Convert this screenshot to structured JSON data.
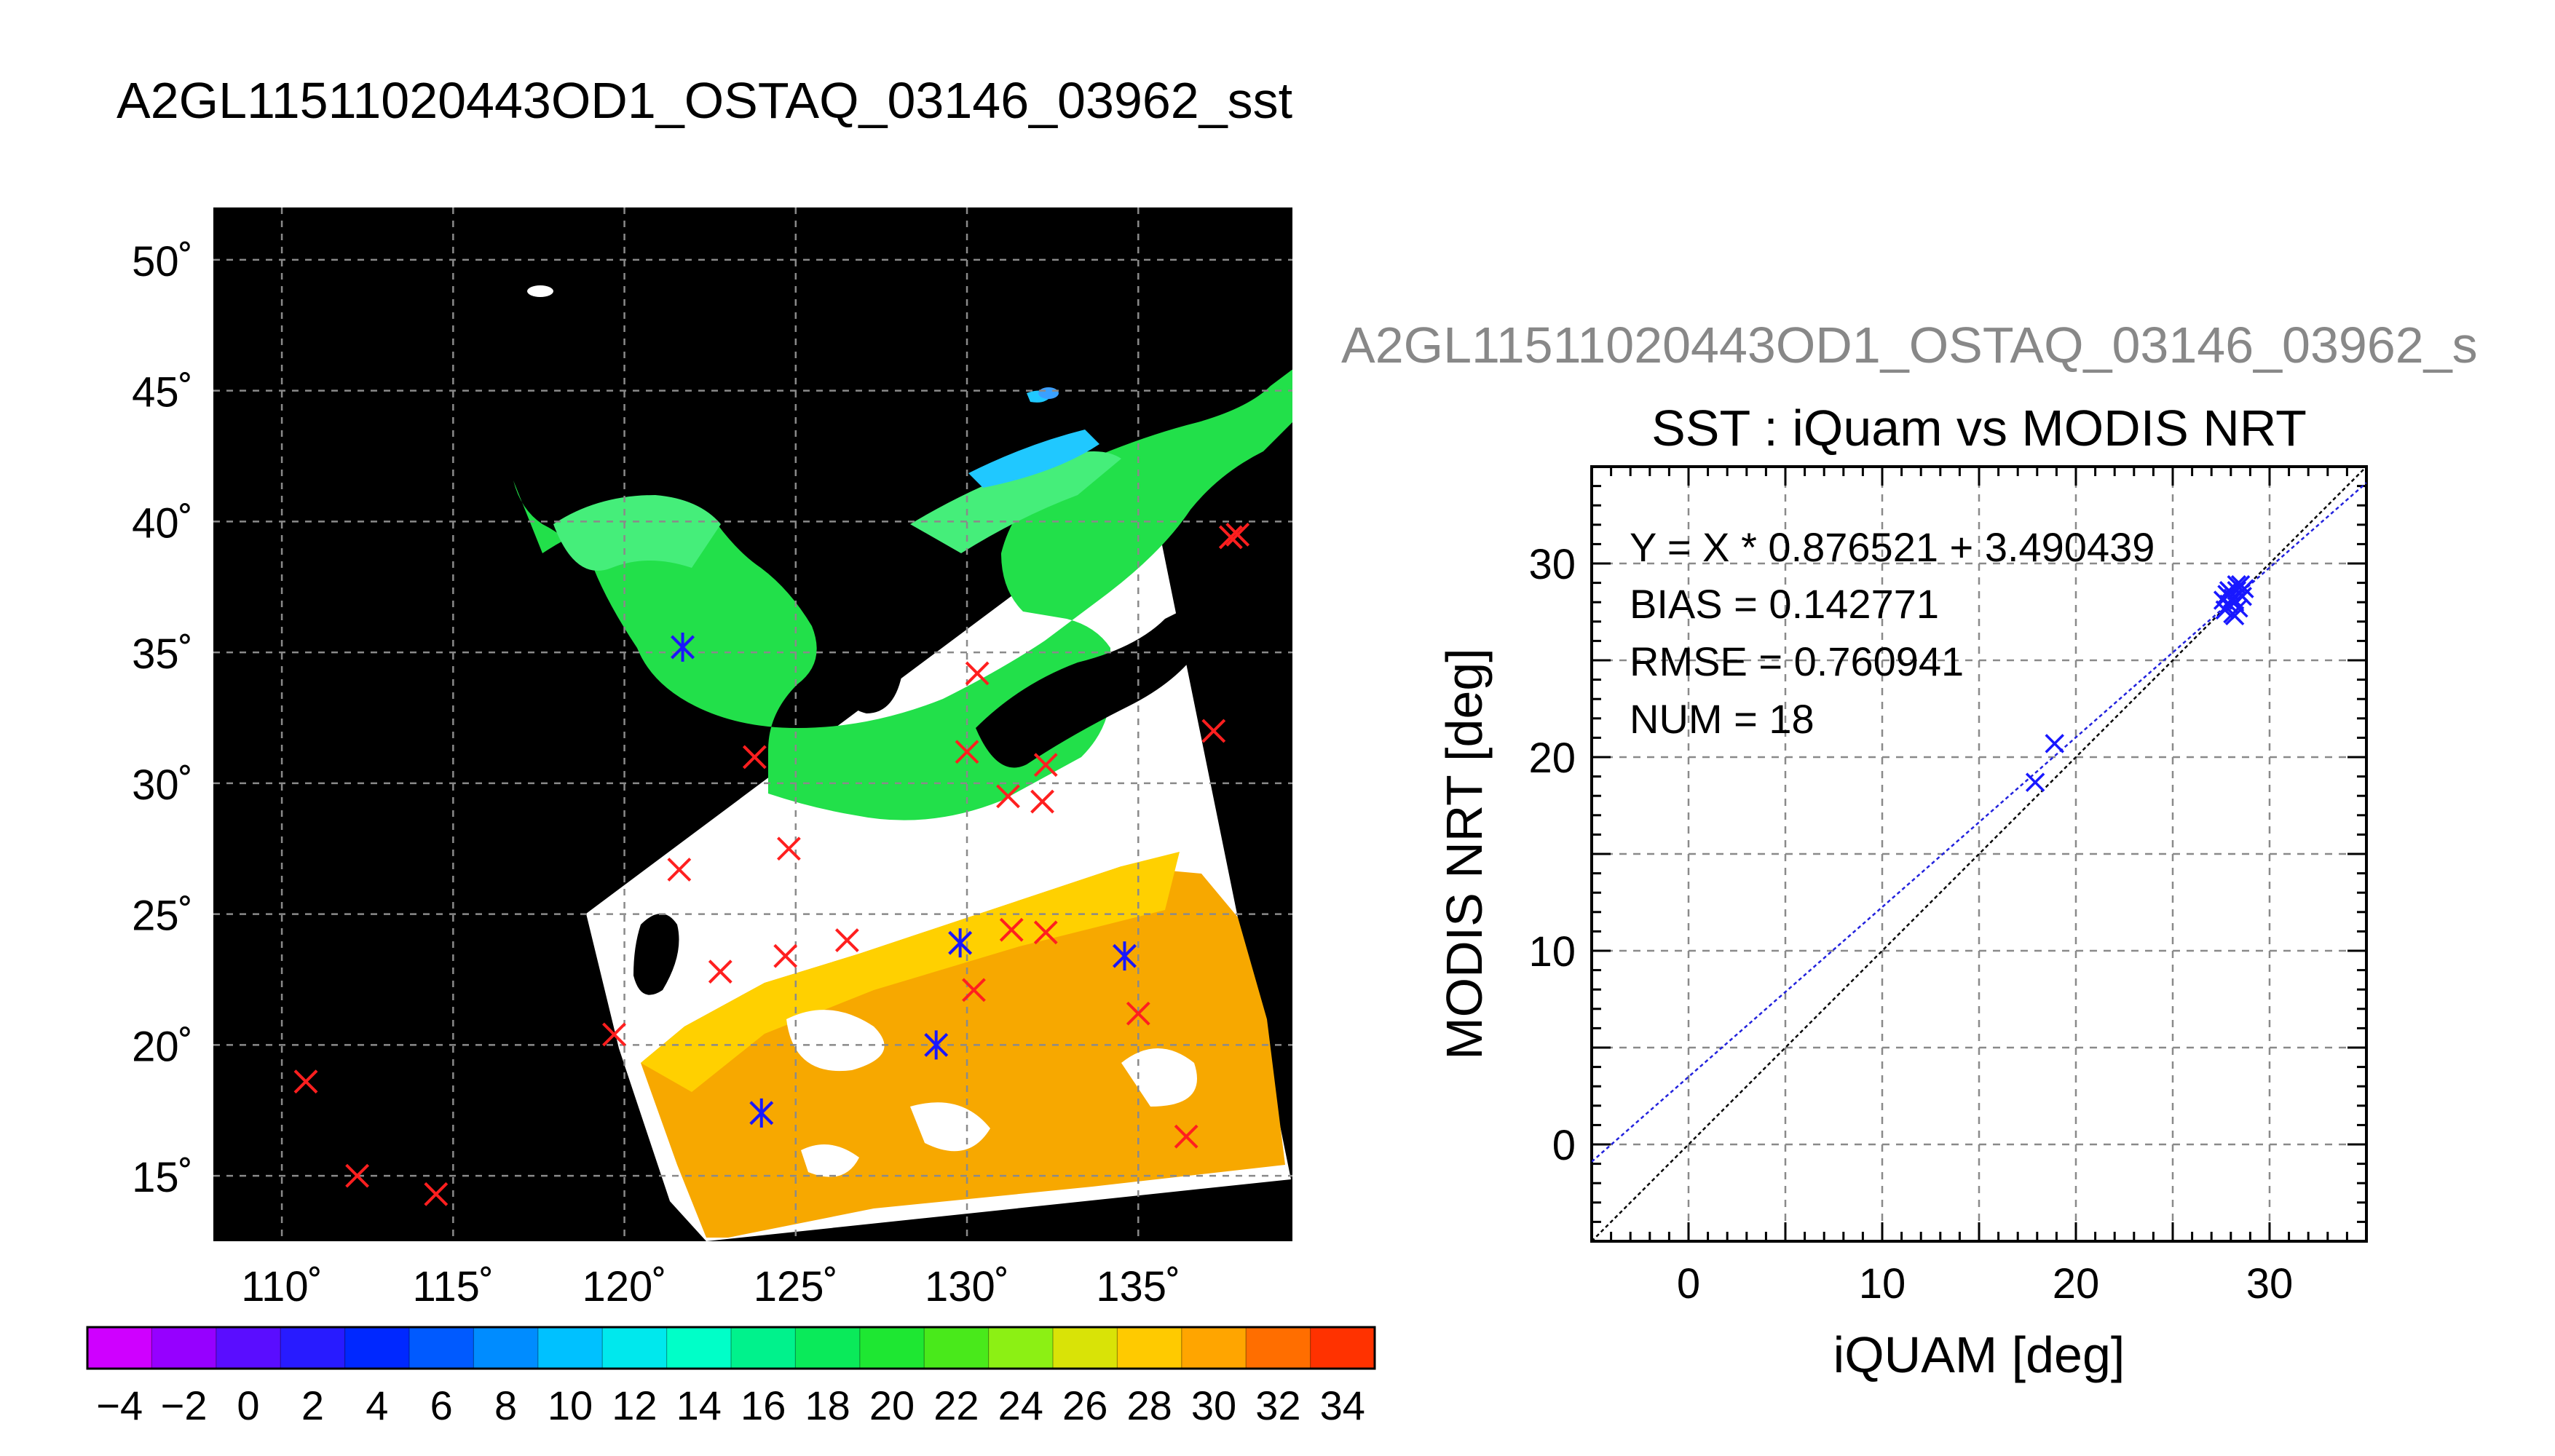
{
  "page": {
    "title": "A2GL11511020443OD1_OSTAQ_03146_03962_sst"
  },
  "map": {
    "lat_ticks": [
      "50˚",
      "45˚",
      "40˚",
      "35˚",
      "30˚",
      "25˚",
      "20˚",
      "15˚"
    ],
    "lon_ticks": [
      "110˚",
      "115˚",
      "120˚",
      "125˚",
      "130˚",
      "135˚"
    ],
    "lat_range": [
      12.5,
      52.0
    ],
    "lon_range": [
      108.0,
      139.5
    ],
    "colorbar": {
      "range": [
        -5,
        35
      ],
      "tick_labels": [
        "−4",
        "−2",
        "0",
        "2",
        "4",
        "6",
        "8",
        "10",
        "12",
        "14",
        "16",
        "18",
        "20",
        "22",
        "24",
        "26",
        "28",
        "30",
        "32",
        "34"
      ],
      "tick_values": [
        -4,
        -2,
        0,
        2,
        4,
        6,
        8,
        10,
        12,
        14,
        16,
        18,
        20,
        22,
        24,
        26,
        28,
        30,
        32,
        34
      ]
    }
  },
  "scatter_panel": {
    "subtitle": "A2GL11511020443OD1_OSTAQ_03146_03962_s"
  },
  "chart_data": [
    {
      "type": "scatter",
      "title": "SST : iQuam vs MODIS NRT",
      "xlabel": "iQUAM [deg]",
      "ylabel": "MODIS NRT [deg]",
      "xlim": [
        -5,
        35
      ],
      "ylim": [
        -5,
        35
      ],
      "x_ticks": [
        0,
        10,
        20,
        30
      ],
      "y_ticks": [
        0,
        10,
        20,
        30
      ],
      "grid": true,
      "stats": {
        "fit": "Y = X * 0.876521 + 3.490439",
        "bias": "BIAS = 0.142771",
        "rmse": "RMSE = 0.760941",
        "num": "NUM = 18"
      },
      "fit_line": {
        "slope": 0.876521,
        "intercept": 3.490439
      },
      "points": [
        {
          "x": 17.9,
          "y": 18.7
        },
        {
          "x": 18.9,
          "y": 20.7
        },
        {
          "x": 27.6,
          "y": 28.1
        },
        {
          "x": 27.8,
          "y": 28.4
        },
        {
          "x": 27.9,
          "y": 27.9
        },
        {
          "x": 28.0,
          "y": 28.5
        },
        {
          "x": 28.1,
          "y": 28.2
        },
        {
          "x": 28.2,
          "y": 27.3
        },
        {
          "x": 28.3,
          "y": 28.6
        },
        {
          "x": 28.4,
          "y": 27.7
        },
        {
          "x": 28.5,
          "y": 28.9
        },
        {
          "x": 28.6,
          "y": 28.3
        },
        {
          "x": 28.2,
          "y": 28.0
        },
        {
          "x": 27.7,
          "y": 27.6
        },
        {
          "x": 28.7,
          "y": 28.7
        },
        {
          "x": 28.1,
          "y": 27.4
        },
        {
          "x": 28.3,
          "y": 28.9
        },
        {
          "x": 27.9,
          "y": 28.6
        }
      ]
    },
    {
      "type": "scatter",
      "title": "",
      "xlabel": "",
      "ylabel": "",
      "red_crosses": [
        {
          "lon": 137.7,
          "lat": 39.4
        },
        {
          "lon": 137.9,
          "lat": 39.5
        },
        {
          "lon": 137.2,
          "lat": 32.0
        },
        {
          "lon": 121.7,
          "lat": 35.2
        },
        {
          "lon": 130.3,
          "lat": 34.2
        },
        {
          "lon": 123.8,
          "lat": 31.0
        },
        {
          "lon": 130.0,
          "lat": 31.2
        },
        {
          "lon": 132.3,
          "lat": 30.7
        },
        {
          "lon": 131.2,
          "lat": 29.5
        },
        {
          "lon": 132.2,
          "lat": 29.3
        },
        {
          "lon": 124.8,
          "lat": 27.5
        },
        {
          "lon": 121.6,
          "lat": 26.7
        },
        {
          "lon": 126.5,
          "lat": 24.0
        },
        {
          "lon": 129.8,
          "lat": 23.9
        },
        {
          "lon": 131.3,
          "lat": 24.4
        },
        {
          "lon": 132.3,
          "lat": 24.3
        },
        {
          "lon": 134.6,
          "lat": 23.4
        },
        {
          "lon": 124.7,
          "lat": 23.4
        },
        {
          "lon": 122.8,
          "lat": 22.8
        },
        {
          "lon": 130.2,
          "lat": 22.1
        },
        {
          "lon": 135.0,
          "lat": 21.2
        },
        {
          "lon": 119.7,
          "lat": 20.4
        },
        {
          "lon": 129.1,
          "lat": 20.0
        },
        {
          "lon": 124.0,
          "lat": 17.4
        },
        {
          "lon": 136.4,
          "lat": 16.5
        },
        {
          "lon": 110.7,
          "lat": 18.6
        },
        {
          "lon": 112.2,
          "lat": 15.0
        },
        {
          "lon": 114.5,
          "lat": 14.3
        }
      ],
      "blue_marks": [
        {
          "lon": 121.7,
          "lat": 35.2
        },
        {
          "lon": 129.8,
          "lat": 23.9
        },
        {
          "lon": 134.6,
          "lat": 23.4
        },
        {
          "lon": 129.1,
          "lat": 20.0
        },
        {
          "lon": 124.0,
          "lat": 17.4
        }
      ]
    }
  ],
  "colors": {
    "cross_red": "#ff1f1f",
    "cross_blue": "#1818ff",
    "fit_line": "#2222dd",
    "one_to_one": "#000000",
    "map_background": "#000000",
    "no_data": "#ffffff",
    "subtitle_gray": "#888888"
  }
}
